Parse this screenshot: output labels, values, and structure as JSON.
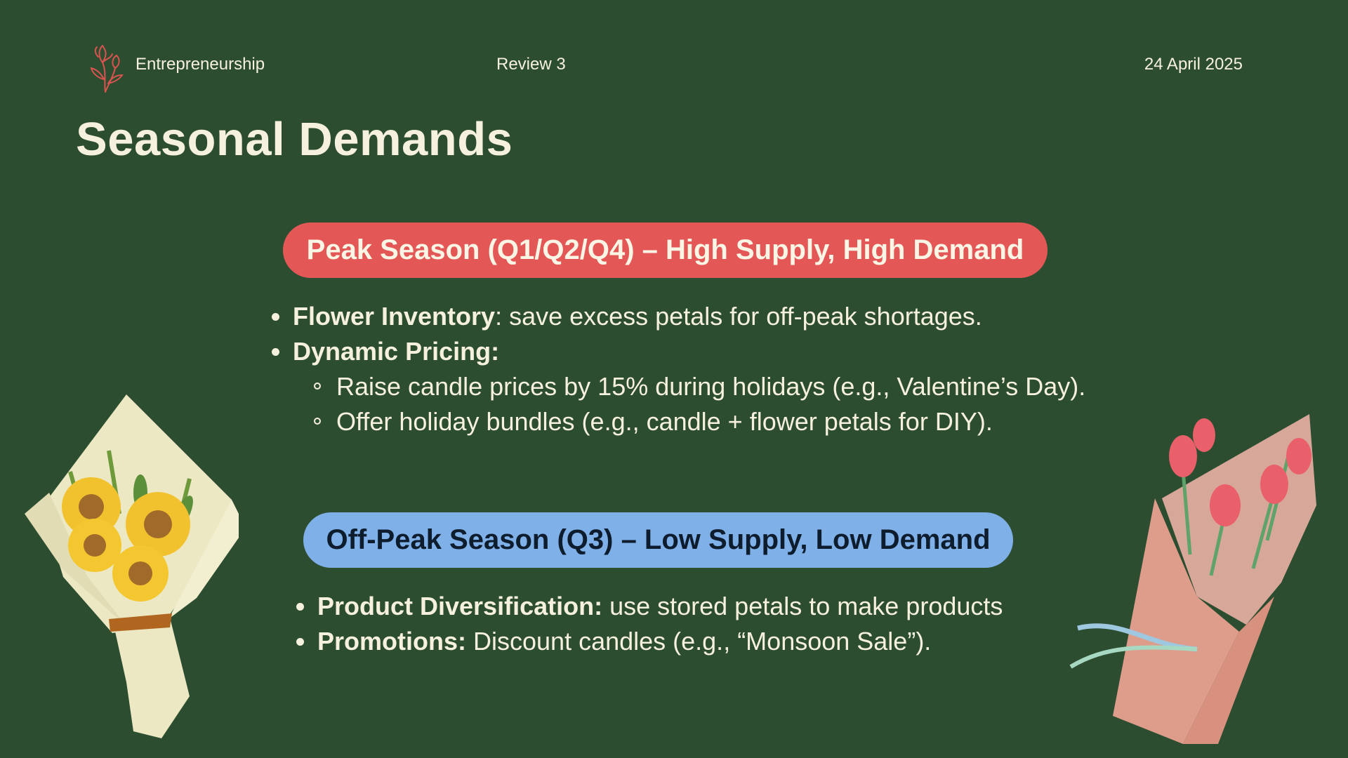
{
  "header": {
    "brand": "Entrepreneurship",
    "review": "Review 3",
    "date": "24 April 2025"
  },
  "title": "Seasonal Demands",
  "peak": {
    "heading": "Peak Season (Q1/Q2/Q4) – High Supply, High Demand",
    "items": [
      {
        "bold": "Flower Inventory",
        "text": ": save excess petals for off-peak shortages."
      },
      {
        "bold": "Dynamic Pricing:",
        "text": ""
      }
    ],
    "subitems": [
      "Raise candle prices by 15% during holidays (e.g., Valentine’s Day).",
      "Offer holiday bundles (e.g., candle + flower petals for DIY)."
    ]
  },
  "offpeak": {
    "heading": "Off-Peak Season (Q3) – Low Supply, Low Demand",
    "items": [
      {
        "bold": "Product Diversification:",
        "text": " use stored petals to make products"
      },
      {
        "bold": "Promotions:",
        "text": " Discount candles (e.g., “Monsoon Sale”)."
      }
    ]
  },
  "colors": {
    "background": "#2d4d31",
    "peak_pill": "#e35856",
    "offpeak_pill": "#7fb0e8",
    "text": "#f6f0de"
  },
  "icons": {
    "logo": "flower-logo-icon",
    "left_image": "sunflower-bouquet",
    "right_image": "tulip-bouquet"
  }
}
